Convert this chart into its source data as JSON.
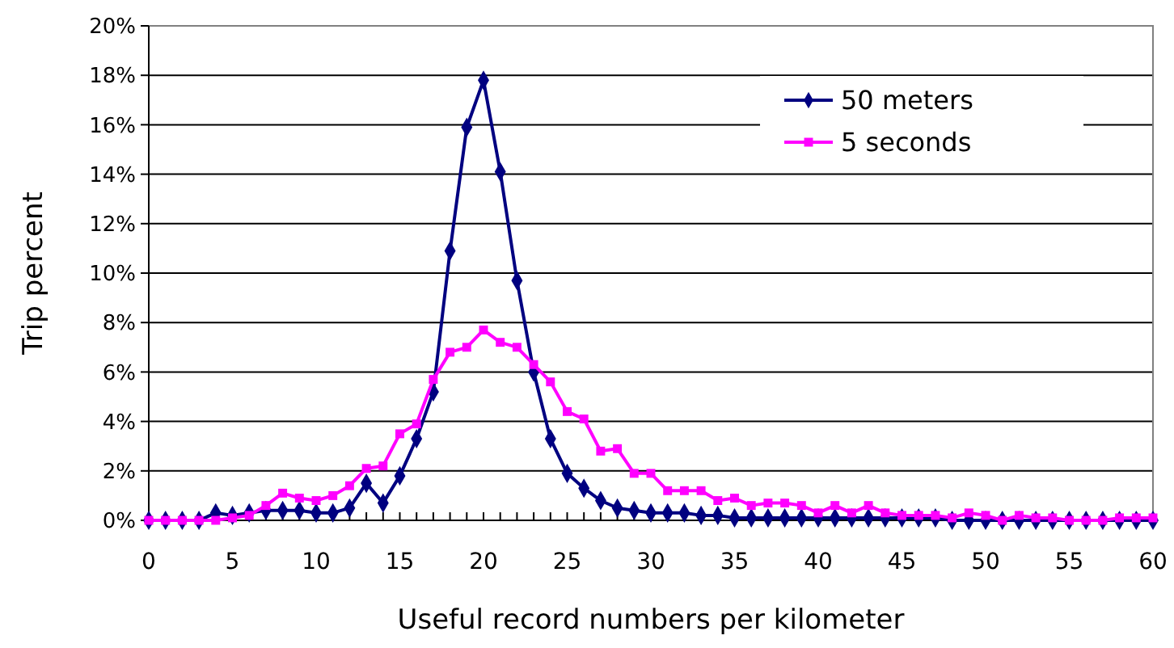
{
  "chart_data": {
    "type": "line",
    "xlabel": "Useful record numbers per kilometer",
    "ylabel": "Trip percent",
    "x": [
      0,
      1,
      2,
      3,
      4,
      5,
      6,
      7,
      8,
      9,
      10,
      11,
      12,
      13,
      14,
      15,
      16,
      17,
      18,
      19,
      20,
      21,
      22,
      23,
      24,
      25,
      26,
      27,
      28,
      29,
      30,
      31,
      32,
      33,
      34,
      35,
      36,
      37,
      38,
      39,
      40,
      41,
      42,
      43,
      44,
      45,
      46,
      47,
      48,
      49,
      50,
      51,
      52,
      53,
      54,
      55,
      56,
      57,
      58,
      59,
      60
    ],
    "series": [
      {
        "name": "50 meters",
        "color": "#000080",
        "marker": "diamond",
        "values": [
          0,
          0,
          0,
          0,
          0.3,
          0.2,
          0.3,
          0.4,
          0.4,
          0.4,
          0.3,
          0.3,
          0.5,
          1.5,
          0.7,
          1.8,
          3.3,
          5.2,
          10.9,
          15.9,
          17.8,
          14.1,
          9.7,
          6.0,
          3.3,
          1.9,
          1.3,
          0.8,
          0.5,
          0.4,
          0.3,
          0.3,
          0.3,
          0.2,
          0.2,
          0.1,
          0.1,
          0.1,
          0.1,
          0.1,
          0.1,
          0.1,
          0.1,
          0.1,
          0.1,
          0.1,
          0.1,
          0.1,
          0,
          0,
          0,
          0,
          0,
          0,
          0,
          0,
          0,
          0,
          0,
          0,
          0
        ]
      },
      {
        "name": "5 seconds",
        "color": "#ff00ff",
        "marker": "square",
        "values": [
          0,
          0,
          0,
          0,
          0,
          0.1,
          0.2,
          0.6,
          1.1,
          0.9,
          0.8,
          1.0,
          1.4,
          2.1,
          2.2,
          3.5,
          3.9,
          5.7,
          6.8,
          7.0,
          7.7,
          7.2,
          7.0,
          6.3,
          5.6,
          4.4,
          4.1,
          2.8,
          2.9,
          1.9,
          1.9,
          1.2,
          1.2,
          1.2,
          0.8,
          0.9,
          0.6,
          0.7,
          0.7,
          0.6,
          0.3,
          0.6,
          0.3,
          0.6,
          0.3,
          0.2,
          0.2,
          0.2,
          0.1,
          0.3,
          0.2,
          0,
          0.2,
          0.1,
          0.1,
          0,
          0,
          0,
          0.1,
          0.1,
          0.1
        ]
      }
    ],
    "xlim": [
      0,
      60
    ],
    "xticks": [
      0,
      5,
      10,
      15,
      20,
      25,
      30,
      35,
      40,
      45,
      50,
      55,
      60
    ],
    "ylim": [
      0,
      20
    ],
    "yticks": [
      {
        "value": 0,
        "label": "0%"
      },
      {
        "value": 2,
        "label": "2%"
      },
      {
        "value": 4,
        "label": "4%"
      },
      {
        "value": 6,
        "label": "6%"
      },
      {
        "value": 8,
        "label": "8%"
      },
      {
        "value": 10,
        "label": "10%"
      },
      {
        "value": 12,
        "label": "12%"
      },
      {
        "value": 14,
        "label": "14%"
      },
      {
        "value": 16,
        "label": "16%"
      },
      {
        "value": 18,
        "label": "18%"
      },
      {
        "value": 20,
        "label": "20%"
      }
    ],
    "grid": "y",
    "legend": "top right",
    "line_style": "solid"
  }
}
